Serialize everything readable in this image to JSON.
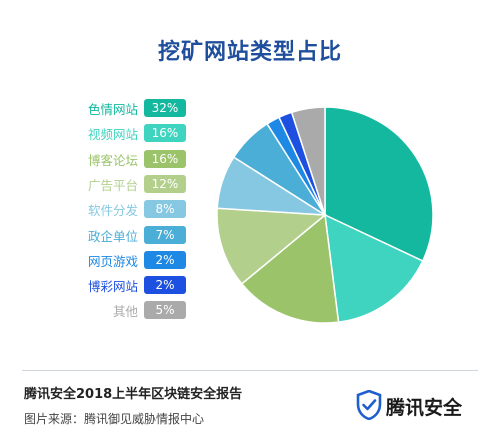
{
  "chart_data": {
    "type": "pie",
    "title": "挖矿网站类型占比",
    "slices": [
      {
        "label": "色情网站",
        "value": 32,
        "display": "32%",
        "color": "#13b89e"
      },
      {
        "label": "视频网站",
        "value": 16,
        "display": "16%",
        "color": "#3fd4c0"
      },
      {
        "label": "博客论坛",
        "value": 16,
        "display": "16%",
        "color": "#9bc46a"
      },
      {
        "label": "广告平台",
        "value": 12,
        "display": "12%",
        "color": "#b2d08c"
      },
      {
        "label": "软件分发",
        "value": 8,
        "display": "8%",
        "color": "#86c8e2"
      },
      {
        "label": "政企单位",
        "value": 7,
        "display": "7%",
        "color": "#4aaed6"
      },
      {
        "label": "网页游戏",
        "value": 2,
        "display": "2%",
        "color": "#1e88e5"
      },
      {
        "label": "博彩网站",
        "value": 2,
        "display": "2%",
        "color": "#1d4fe0"
      },
      {
        "label": "其他",
        "value": 5,
        "display": "5%",
        "color": "#aaaaaa"
      }
    ],
    "legend_position": "left"
  },
  "footer": {
    "report_title": "腾讯安全2018上半年区块链安全报告",
    "source": "图片来源：腾讯御见威胁情报中心"
  },
  "brand": {
    "name": "腾讯安全",
    "icon": "shield-check-icon",
    "color": "#1d5fcf"
  }
}
